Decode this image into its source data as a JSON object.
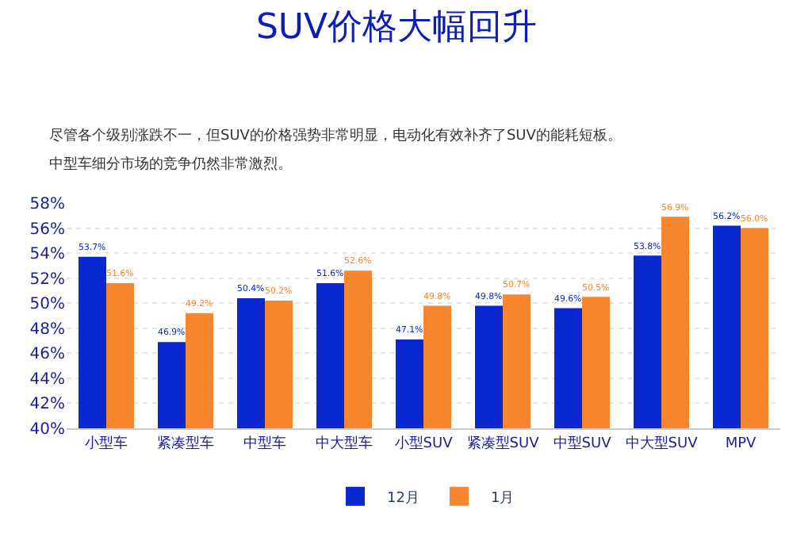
{
  "chart_data": {
    "type": "bar",
    "title": "SUV价格大幅回升",
    "annotations": [
      "尽管各个级别涨跌不一，但SUV的价格强势非常明显，电动化有效补齐了SUV的能耗短板。",
      "中型车细分市场的竞争仍然非常激烈。"
    ],
    "categories": [
      "小型车",
      "紧凑型车",
      "中型车",
      "中大型车",
      "小型SUV",
      "紧凑型SUV",
      "中型SUV",
      "中大型SUV",
      "MPV"
    ],
    "series": [
      {
        "name": "12月",
        "color": "#0a28d0",
        "values": [
          53.7,
          46.9,
          50.4,
          51.6,
          47.1,
          49.8,
          49.6,
          53.8,
          56.2
        ],
        "value_labels": [
          "53.7%",
          "46.9%",
          "50.4%",
          "51.6%",
          "47.1%",
          "49.8%",
          "49.6%",
          "53.8%",
          "56.2%"
        ]
      },
      {
        "name": "1月",
        "color": "#f7862e",
        "values": [
          51.6,
          49.2,
          50.2,
          52.6,
          49.8,
          50.7,
          50.5,
          56.9,
          56.0
        ],
        "value_labels": [
          "51.6%",
          "49.2%",
          "50.2%",
          "52.6%",
          "49.8%",
          "50.7%",
          "50.5%",
          "56.9%",
          "56.0%"
        ]
      }
    ],
    "ylim": [
      40,
      58
    ],
    "yticks": [
      {
        "value": 40,
        "label": "40%"
      },
      {
        "value": 42,
        "label": "42%"
      },
      {
        "value": 44,
        "label": "44%"
      },
      {
        "value": 46,
        "label": "46%"
      },
      {
        "value": 48,
        "label": "48%"
      },
      {
        "value": 50,
        "label": "50%"
      },
      {
        "value": 52,
        "label": "52%"
      },
      {
        "value": 54,
        "label": "54%"
      },
      {
        "value": 56,
        "label": "56%"
      },
      {
        "value": 58,
        "label": "58%"
      }
    ],
    "grid": "y",
    "legend": "bottom"
  }
}
